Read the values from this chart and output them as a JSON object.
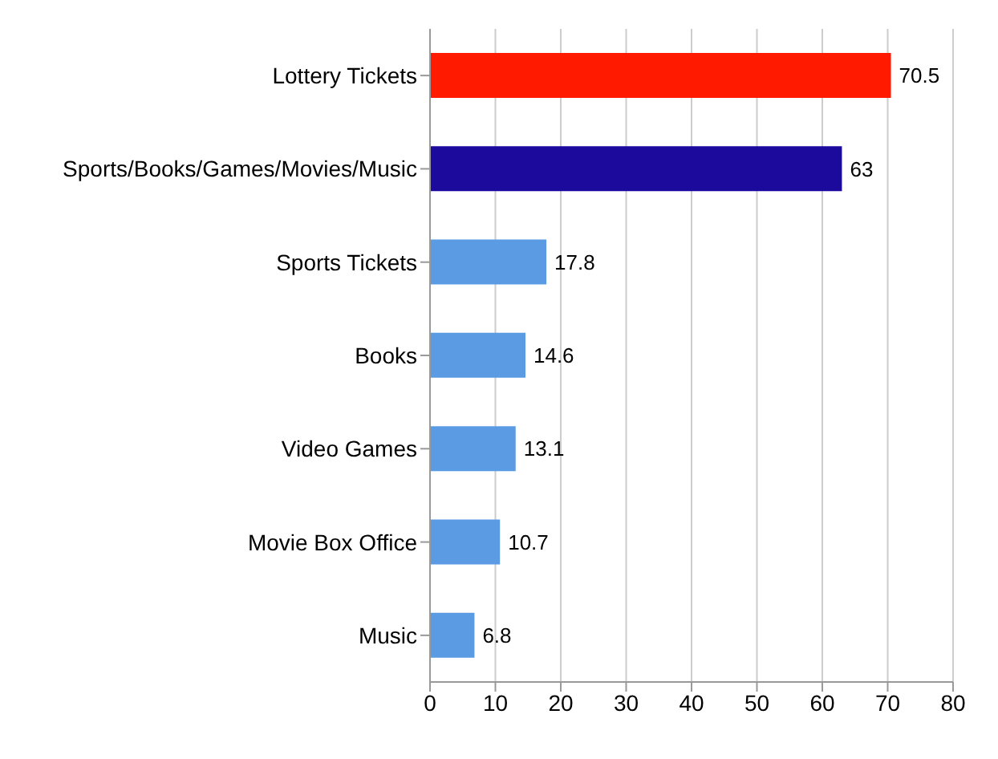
{
  "chart_data": {
    "type": "bar",
    "orientation": "horizontal",
    "categories": [
      "Lottery Tickets",
      "Sports/Books/Games/Movies/Music",
      "Sports Tickets",
      "Books",
      "Video Games",
      "Movie Box Office",
      "Music"
    ],
    "values": [
      70.5,
      63,
      17.8,
      14.6,
      13.1,
      10.7,
      6.8
    ],
    "colors": [
      "#ff1a00",
      "#1c0a9c",
      "#5b9be3",
      "#5b9be3",
      "#5b9be3",
      "#5b9be3",
      "#5b9be3"
    ],
    "xlim": [
      0,
      80
    ],
    "xticks": [
      0,
      10,
      20,
      30,
      40,
      50,
      60,
      70,
      80
    ],
    "grid": "x",
    "data_labels": true
  }
}
